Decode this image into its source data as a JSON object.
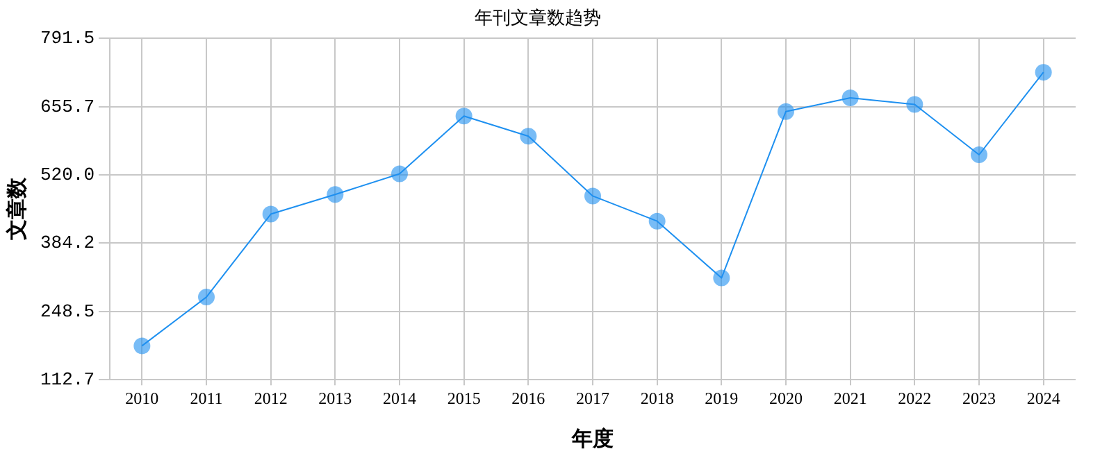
{
  "chart_data": {
    "type": "line",
    "title": "年刊文章数趋势",
    "xlabel": "年度",
    "ylabel": "文章数",
    "categories": [
      "2010",
      "2011",
      "2012",
      "2013",
      "2014",
      "2015",
      "2016",
      "2017",
      "2018",
      "2019",
      "2020",
      "2021",
      "2022",
      "2023",
      "2024"
    ],
    "series": [
      {
        "color": "#1e90f0",
        "values": [
          180,
          277,
          442,
          481,
          522,
          637,
          597,
          478,
          428,
          315,
          646,
          673,
          660,
          560,
          724
        ]
      }
    ],
    "ylim": [
      112.7,
      791.5
    ],
    "yticks": [
      112.7,
      248.5,
      384.2,
      {
        "value": 520.0,
        "label": "520.0"
      },
      655.7,
      791.5
    ],
    "grid": true,
    "marker": "circle",
    "line_style": "solid",
    "legend": false
  }
}
